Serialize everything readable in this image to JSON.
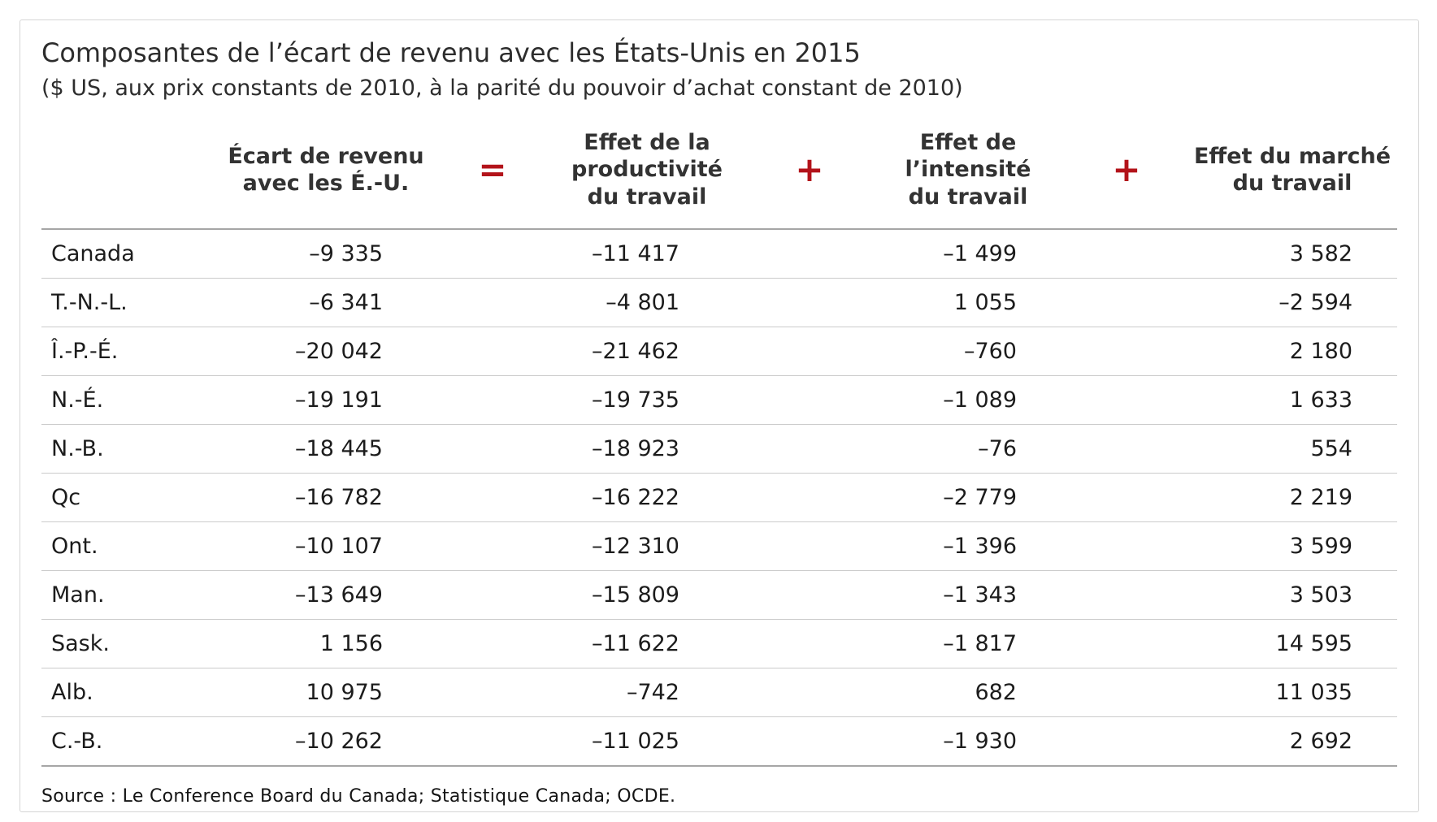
{
  "title": "Composantes de l’écart de revenu avec les États-Unis en 2015",
  "subtitle": "($ US, aux prix constants de 2010, à la parité du pouvoir d’achat constant de 2010)",
  "source": "Source : Le Conference Board du Canada; Statistique Canada; OCDE.",
  "colors": {
    "operator_red": "#b3131a",
    "frame_border": "#d5d5d5",
    "row_separator": "#cbcbcb",
    "heavy_rule": "#a6a6a6",
    "text": "#1c1c1c"
  },
  "table": {
    "columns": [
      {
        "key": "gap",
        "label": "Écart de revenu\navec les É.-U."
      },
      {
        "key": "productivity",
        "label": "Effet de la\nproductivité\ndu travail"
      },
      {
        "key": "intensity",
        "label": "Effet de\nl’intensité\ndu travail"
      },
      {
        "key": "market",
        "label": "Effet du marché\ndu travail"
      }
    ],
    "operators": [
      "=",
      "+",
      "+"
    ],
    "rows": [
      {
        "label": "Canada",
        "gap": "–9 335",
        "productivity": "–11 417",
        "intensity": "–1 499",
        "market": "3 582"
      },
      {
        "label": "T.-N.-L.",
        "gap": "–6 341",
        "productivity": "–4 801",
        "intensity": "1 055",
        "market": "–2 594"
      },
      {
        "label": "Î.-P.-É.",
        "gap": "–20 042",
        "productivity": "–21 462",
        "intensity": "–760",
        "market": "2 180"
      },
      {
        "label": "N.-É.",
        "gap": "–19 191",
        "productivity": "–19 735",
        "intensity": "–1 089",
        "market": "1 633"
      },
      {
        "label": "N.-B.",
        "gap": "–18 445",
        "productivity": "–18 923",
        "intensity": "–76",
        "market": "554"
      },
      {
        "label": "Qc",
        "gap": "–16 782",
        "productivity": "–16 222",
        "intensity": "–2 779",
        "market": "2 219"
      },
      {
        "label": "Ont.",
        "gap": "–10 107",
        "productivity": "–12 310",
        "intensity": "–1 396",
        "market": "3 599"
      },
      {
        "label": "Man.",
        "gap": "–13 649",
        "productivity": "–15 809",
        "intensity": "–1 343",
        "market": "3 503"
      },
      {
        "label": "Sask.",
        "gap": "1 156",
        "productivity": "–11 622",
        "intensity": "–1 817",
        "market": "14 595"
      },
      {
        "label": "Alb.",
        "gap": "10 975",
        "productivity": "–742",
        "intensity": "682",
        "market": "11 035"
      },
      {
        "label": "C.-B.",
        "gap": "–10 262",
        "productivity": "–11 025",
        "intensity": "–1 930",
        "market": "2 692"
      }
    ]
  },
  "chart_data": {
    "type": "table",
    "title": "Composantes de l’écart de revenu avec les États-Unis en 2015",
    "subtitle": "($ US, aux prix constants de 2010, à la parité du pouvoir d’achat constant de 2010)",
    "relation": "Écart de revenu avec les É.-U. = Effet de la productivité du travail + Effet de l’intensité du travail + Effet du marché du travail",
    "categories": [
      "Canada",
      "T.-N.-L.",
      "Î.-P.-É.",
      "N.-É.",
      "N.-B.",
      "Qc",
      "Ont.",
      "Man.",
      "Sask.",
      "Alb.",
      "C.-B."
    ],
    "series": [
      {
        "name": "Écart de revenu avec les É.-U.",
        "values": [
          -9335,
          -6341,
          -20042,
          -19191,
          -18445,
          -16782,
          -10107,
          -13649,
          1156,
          10975,
          -10262
        ]
      },
      {
        "name": "Effet de la productivité du travail",
        "values": [
          -11417,
          -4801,
          -21462,
          -19735,
          -18923,
          -16222,
          -12310,
          -15809,
          -11622,
          -742,
          -11025
        ]
      },
      {
        "name": "Effet de l’intensité du travail",
        "values": [
          -1499,
          1055,
          -760,
          -1089,
          -76,
          -2779,
          -1396,
          -1343,
          -1817,
          682,
          -1930
        ]
      },
      {
        "name": "Effet du marché du travail",
        "values": [
          3582,
          -2594,
          2180,
          1633,
          554,
          2219,
          3599,
          3503,
          14595,
          11035,
          2692
        ]
      }
    ],
    "source": "Source : Le Conference Board du Canada; Statistique Canada; OCDE."
  }
}
